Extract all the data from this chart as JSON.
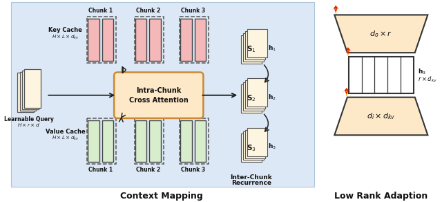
{
  "bg_color": "#dce8f5",
  "white_bg": "#ffffff",
  "right_bg": "#fefefe",
  "title_context": "Context Mapping",
  "title_lowrank": "Low Rank Adaption",
  "key_cache_label": "Key Cache",
  "key_cache_dim": "$H \\times L \\times d_{kv}$",
  "value_cache_label": "Value Cache",
  "value_cache_dim": "$H \\times L \\times d_{kv}$",
  "learnable_query_label": "Learnable Query",
  "learnable_query_dim": "$H \\times r \\times d$",
  "attn_label1": "Intra-Chunk",
  "attn_label2": "Cross Attention",
  "inter_chunk_label1": "Inter-Chunk",
  "inter_chunk_label2": "Recurrence",
  "chunk_labels_top": [
    "Chunk 1",
    "Chunk 2",
    "Chunk 3"
  ],
  "chunk_labels_bot": [
    "Chunk 1",
    "Chunk 2",
    "Chunk 3"
  ],
  "key_color": "#f5b8b8",
  "value_color": "#d8edcc",
  "attn_color": "#fde8c8",
  "stack_color": "#fdf5e0",
  "trapezoid_color": "#fde8c8",
  "label_s": [
    "$\\mathbf{S}_1$",
    "$\\mathbf{S}_2$",
    "$\\mathbf{S}_3$"
  ],
  "label_h": [
    "$\\mathbf{h}_1$",
    "$\\mathbf{h}_2$",
    "$\\mathbf{h}_3$"
  ],
  "label_do": "$d_o \\times r$",
  "label_r_dkv": "$r \\times d_{kv}$",
  "label_di_dkv": "$d_i \\times d_{kv}$",
  "label_h3_bold": "$\\mathbf{h}_3$"
}
